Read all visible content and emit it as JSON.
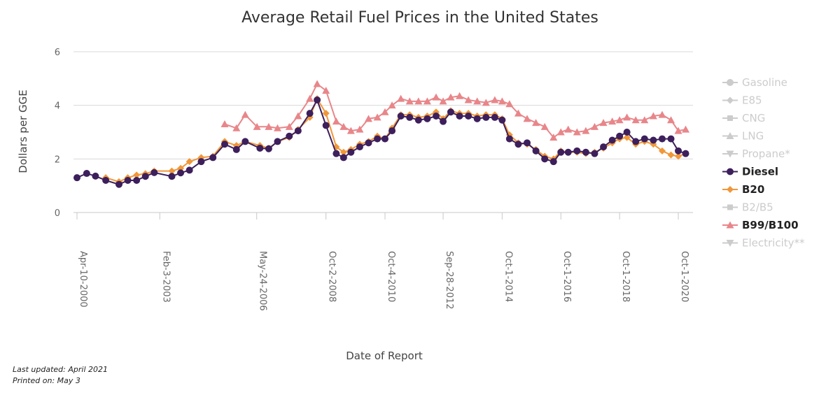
{
  "chart_data": {
    "type": "line",
    "title": "Average Retail Fuel Prices in the United States",
    "xlabel": "Date of Report",
    "ylabel": "Dollars per GGE",
    "ylim": [
      0,
      6
    ],
    "yticks": [
      "0",
      "2",
      "4",
      "6"
    ],
    "xlim": [
      2000.27,
      2021.25
    ],
    "xticks": [
      {
        "label": "Apr-10-2000",
        "x": 2000.27
      },
      {
        "label": "Feb-3-2003",
        "x": 2003.09
      },
      {
        "label": "May-24-2006",
        "x": 2006.39
      },
      {
        "label": "Oct-2-2008",
        "x": 2008.75
      },
      {
        "label": "Oct-4-2010",
        "x": 2010.76
      },
      {
        "label": "Sep-28-2012",
        "x": 2012.74
      },
      {
        "label": "Oct-1-2014",
        "x": 2014.75
      },
      {
        "label": "Oct-1-2016",
        "x": 2016.75
      },
      {
        "label": "Oct-1-2018",
        "x": 2018.75
      },
      {
        "label": "Oct-1-2020",
        "x": 2020.75
      }
    ],
    "grid": true,
    "legend_position": "right",
    "legend": [
      {
        "name": "Gasoline",
        "marker": "circle",
        "active": false
      },
      {
        "name": "E85",
        "marker": "diamond",
        "active": false
      },
      {
        "name": "CNG",
        "marker": "square",
        "active": false
      },
      {
        "name": "LNG",
        "marker": "triangle",
        "active": false
      },
      {
        "name": "Propane*",
        "marker": "triangle-down",
        "active": false
      },
      {
        "name": "Diesel",
        "marker": "circle",
        "active": true,
        "color": "#3d1f5c"
      },
      {
        "name": "B20",
        "marker": "diamond",
        "active": true,
        "color": "#f0973a"
      },
      {
        "name": "B2/B5",
        "marker": "square",
        "active": false
      },
      {
        "name": "B99/B100",
        "marker": "triangle",
        "active": true,
        "color": "#e8868a"
      },
      {
        "name": "Electricity**",
        "marker": "triangle-down",
        "active": false
      }
    ],
    "series": [
      {
        "name": "Diesel",
        "color": "#3d1f5c",
        "marker": "circle",
        "x": [
          2000.27,
          2000.6,
          2000.9,
          2001.25,
          2001.7,
          2002.0,
          2002.3,
          2002.6,
          2002.9,
          2003.5,
          2003.8,
          2004.1,
          2004.5,
          2004.9,
          2005.3,
          2005.7,
          2006.0,
          2006.5,
          2006.8,
          2007.1,
          2007.5,
          2007.8,
          2008.2,
          2008.45,
          2008.75,
          2009.1,
          2009.35,
          2009.6,
          2009.9,
          2010.2,
          2010.5,
          2010.76,
          2011.0,
          2011.3,
          2011.6,
          2011.9,
          2012.2,
          2012.5,
          2012.74,
          2013.0,
          2013.3,
          2013.6,
          2013.9,
          2014.2,
          2014.5,
          2014.75,
          2015.0,
          2015.3,
          2015.6,
          2015.9,
          2016.2,
          2016.5,
          2016.75,
          2017.0,
          2017.3,
          2017.6,
          2017.9,
          2018.2,
          2018.5,
          2018.75,
          2019.0,
          2019.3,
          2019.6,
          2019.9,
          2020.2,
          2020.5,
          2020.75,
          2021.0
        ],
        "y": [
          1.3,
          1.46,
          1.36,
          1.2,
          1.05,
          1.2,
          1.2,
          1.35,
          1.49,
          1.35,
          1.48,
          1.58,
          1.9,
          2.05,
          2.55,
          2.35,
          2.65,
          2.4,
          2.38,
          2.65,
          2.85,
          3.05,
          3.7,
          4.2,
          3.25,
          2.2,
          2.05,
          2.25,
          2.45,
          2.6,
          2.75,
          2.75,
          3.05,
          3.6,
          3.55,
          3.45,
          3.5,
          3.6,
          3.4,
          3.75,
          3.6,
          3.6,
          3.5,
          3.55,
          3.55,
          3.45,
          2.75,
          2.55,
          2.6,
          2.3,
          2.0,
          1.9,
          2.25,
          2.25,
          2.3,
          2.25,
          2.2,
          2.45,
          2.7,
          2.85,
          3.0,
          2.65,
          2.75,
          2.7,
          2.75,
          2.75,
          2.3,
          2.2
        ]
      },
      {
        "name": "B20",
        "color": "#f0973a",
        "marker": "diamond",
        "x": [
          2001.25,
          2001.7,
          2002.0,
          2002.3,
          2002.6,
          2002.9,
          2003.5,
          2003.8,
          2004.1,
          2004.5,
          2004.9,
          2005.3,
          2005.7,
          2006.0,
          2006.5,
          2006.8,
          2007.1,
          2007.5,
          2007.8,
          2008.2,
          2008.45,
          2008.75,
          2009.1,
          2009.35,
          2009.6,
          2009.9,
          2010.2,
          2010.5,
          2010.76,
          2011.0,
          2011.3,
          2011.6,
          2011.9,
          2012.2,
          2012.5,
          2012.74,
          2013.0,
          2013.3,
          2013.6,
          2013.9,
          2014.2,
          2014.5,
          2014.75,
          2015.0,
          2015.3,
          2015.6,
          2015.9,
          2016.2,
          2016.5,
          2016.75,
          2017.0,
          2017.3,
          2017.6,
          2017.9,
          2018.2,
          2018.5,
          2018.75,
          2019.0,
          2019.3,
          2019.6,
          2019.9,
          2020.2,
          2020.5,
          2020.75,
          2021.0
        ],
        "y": [
          1.3,
          1.15,
          1.3,
          1.4,
          1.45,
          1.55,
          1.55,
          1.65,
          1.9,
          2.05,
          2.1,
          2.65,
          2.5,
          2.65,
          2.5,
          2.4,
          2.65,
          2.8,
          3.1,
          3.55,
          4.25,
          3.7,
          2.45,
          2.25,
          2.35,
          2.55,
          2.65,
          2.85,
          2.75,
          3.15,
          3.65,
          3.65,
          3.55,
          3.6,
          3.75,
          3.5,
          3.8,
          3.7,
          3.7,
          3.6,
          3.65,
          3.65,
          3.5,
          2.9,
          2.6,
          2.55,
          2.35,
          2.1,
          2.0,
          2.3,
          2.25,
          2.25,
          2.2,
          2.25,
          2.4,
          2.6,
          2.75,
          2.8,
          2.55,
          2.65,
          2.55,
          2.3,
          2.15,
          2.1,
          2.2
        ]
      },
      {
        "name": "B99/B100",
        "color": "#e8868a",
        "marker": "triangle",
        "x": [
          2005.3,
          2005.7,
          2006.0,
          2006.4,
          2006.8,
          2007.1,
          2007.5,
          2007.8,
          2008.2,
          2008.45,
          2008.75,
          2009.1,
          2009.35,
          2009.6,
          2009.9,
          2010.2,
          2010.5,
          2010.76,
          2011.0,
          2011.3,
          2011.6,
          2011.9,
          2012.2,
          2012.5,
          2012.74,
          2013.0,
          2013.3,
          2013.6,
          2013.9,
          2014.2,
          2014.5,
          2014.75,
          2015.0,
          2015.3,
          2015.6,
          2015.9,
          2016.2,
          2016.5,
          2016.75,
          2017.0,
          2017.3,
          2017.6,
          2017.9,
          2018.2,
          2018.5,
          2018.75,
          2019.0,
          2019.3,
          2019.6,
          2019.9,
          2020.2,
          2020.5,
          2020.75,
          2021.0
        ],
        "y": [
          3.3,
          3.15,
          3.65,
          3.2,
          3.2,
          3.15,
          3.2,
          3.6,
          4.25,
          4.8,
          4.55,
          3.4,
          3.2,
          3.05,
          3.1,
          3.5,
          3.55,
          3.75,
          4.0,
          4.25,
          4.15,
          4.15,
          4.15,
          4.3,
          4.15,
          4.3,
          4.35,
          4.2,
          4.15,
          4.1,
          4.2,
          4.15,
          4.05,
          3.7,
          3.5,
          3.35,
          3.2,
          2.8,
          3.0,
          3.1,
          3.0,
          3.05,
          3.2,
          3.35,
          3.4,
          3.45,
          3.55,
          3.45,
          3.45,
          3.6,
          3.65,
          3.45,
          3.05,
          3.1
        ]
      }
    ]
  },
  "footer": {
    "updated": "Last updated: April 2021",
    "printed": "Printed on: May 3"
  }
}
